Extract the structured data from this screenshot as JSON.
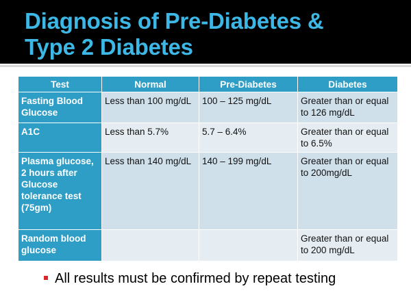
{
  "title": {
    "line1": "Diagnosis of Pre-Diabetes &",
    "line2": "Type 2 Diabetes"
  },
  "colors": {
    "title": "#3db8e6",
    "header": "#2e9ec6",
    "bullet": "#d9262b"
  },
  "table": {
    "headers": [
      "Test",
      "Normal",
      "Pre-Diabetes",
      "Diabetes"
    ],
    "rows": [
      [
        "Fasting Blood Glucose",
        "Less than 100 mg/dL",
        "100 – 125 mg/dL",
        "Greater than or equal to 126 mg/dL"
      ],
      [
        "A1C",
        "Less than 5.7%",
        "5.7 – 6.4%",
        "Greater than or equal to 6.5%"
      ],
      [
        "Plasma glucose, 2 hours after Glucose tolerance test (75gm)",
        "Less than 140 mg/dL",
        "140 – 199 mg/dL",
        "Greater than or equal to 200mg/dL"
      ],
      [
        "Random blood glucose",
        "",
        "",
        "Greater than or equal to 200 mg/dL"
      ]
    ]
  },
  "bullet": "All results must be confirmed by repeat testing"
}
